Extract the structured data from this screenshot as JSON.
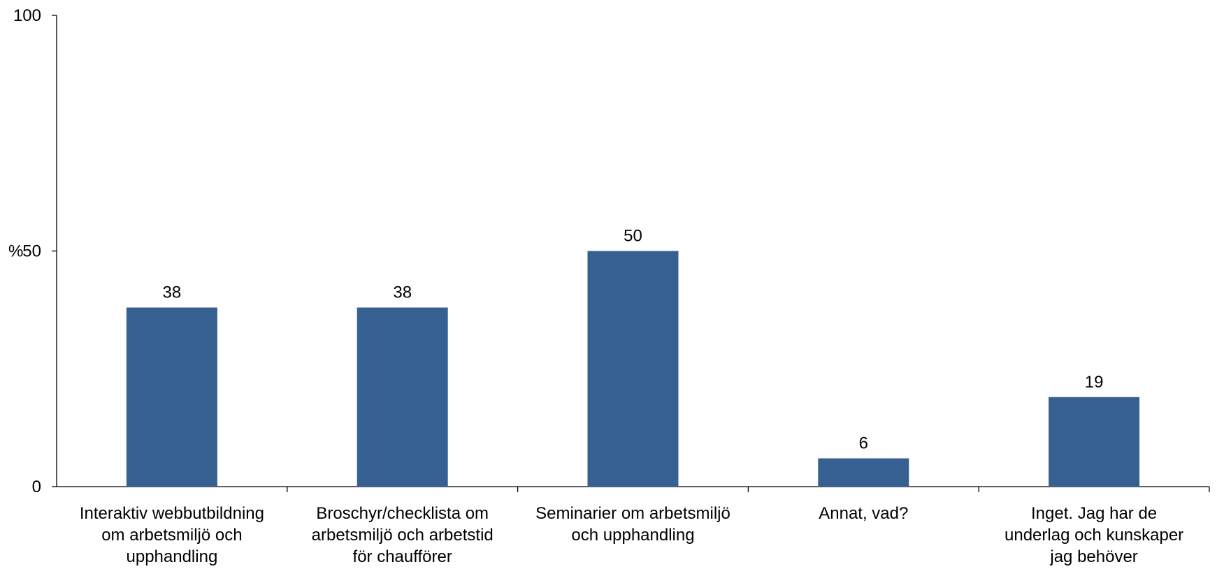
{
  "chart_data": {
    "type": "bar",
    "categories": [
      [
        "Interaktiv webbutbildning",
        "om arbetsmiljö och",
        "upphandling"
      ],
      [
        "Broschyr/checklista om",
        "arbetsmiljö och arbetstid",
        "för chaufförer"
      ],
      [
        "Seminarier om arbetsmiljö",
        "och upphandling"
      ],
      [
        "Annat, vad?"
      ],
      [
        "Inget. Jag har de",
        "underlag och kunskaper",
        "jag behöver"
      ]
    ],
    "values": [
      38,
      38,
      50,
      6,
      19
    ],
    "data_labels": [
      "38",
      "38",
      "50",
      "6",
      "19"
    ],
    "ylabel": "%",
    "ylim": [
      0,
      100
    ],
    "yticks": [
      0,
      50,
      100
    ],
    "ytick_labels": [
      "0",
      "50",
      "100"
    ],
    "bar_color": "#376092",
    "grid": false,
    "legend": "none"
  }
}
